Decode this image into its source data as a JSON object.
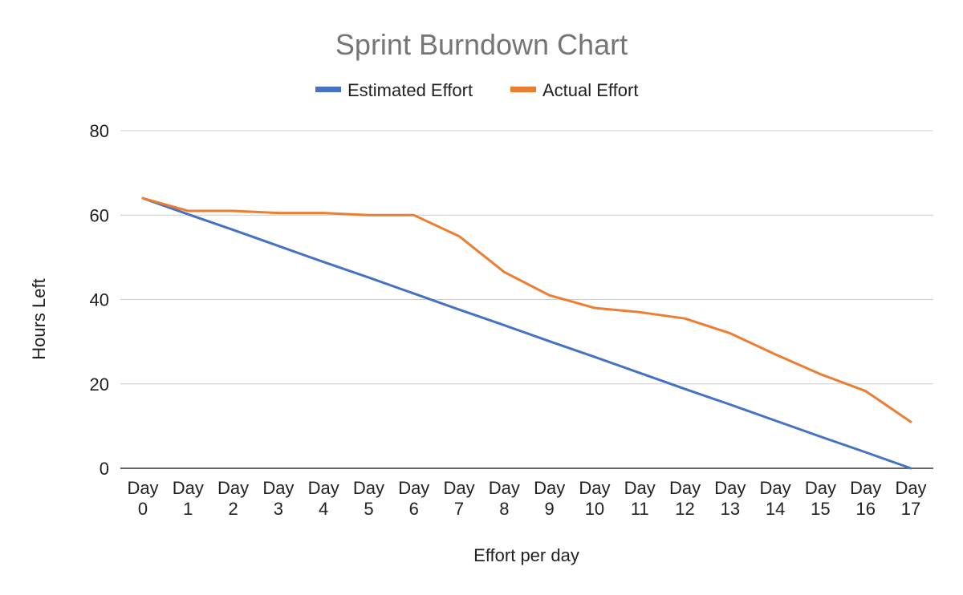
{
  "chart_data": {
    "type": "line",
    "title": "Sprint Burndown Chart",
    "xlabel": "Effort per day",
    "ylabel": "Hours Left",
    "ylim": [
      0,
      80
    ],
    "yticks": [
      "0",
      "20",
      "40",
      "60",
      "80"
    ],
    "grid": true,
    "legend_position": "top",
    "categories": [
      [
        "Day",
        "0"
      ],
      [
        "Day",
        "1"
      ],
      [
        "Day",
        "2"
      ],
      [
        "Day",
        "3"
      ],
      [
        "Day",
        "4"
      ],
      [
        "Day",
        "5"
      ],
      [
        "Day",
        "6"
      ],
      [
        "Day",
        "7"
      ],
      [
        "Day",
        "8"
      ],
      [
        "Day",
        "9"
      ],
      [
        "Day",
        "10"
      ],
      [
        "Day",
        "11"
      ],
      [
        "Day",
        "12"
      ],
      [
        "Day",
        "13"
      ],
      [
        "Day",
        "14"
      ],
      [
        "Day",
        "15"
      ],
      [
        "Day",
        "16"
      ],
      [
        "Day",
        "17"
      ]
    ],
    "series": [
      {
        "name": "Estimated Effort",
        "color": "#4472C4",
        "values": [
          64,
          60.2,
          56.5,
          52.7,
          48.9,
          45.2,
          41.4,
          37.6,
          33.9,
          30.1,
          26.4,
          22.6,
          18.8,
          15.1,
          11.3,
          7.5,
          3.8,
          0
        ]
      },
      {
        "name": "Actual Effort",
        "color": "#ED7D31",
        "values": [
          64,
          61,
          61,
          60.5,
          60.5,
          60,
          60,
          55,
          46.5,
          41,
          38,
          37,
          35.5,
          32,
          27,
          22.3,
          18.3,
          11
        ]
      }
    ]
  }
}
